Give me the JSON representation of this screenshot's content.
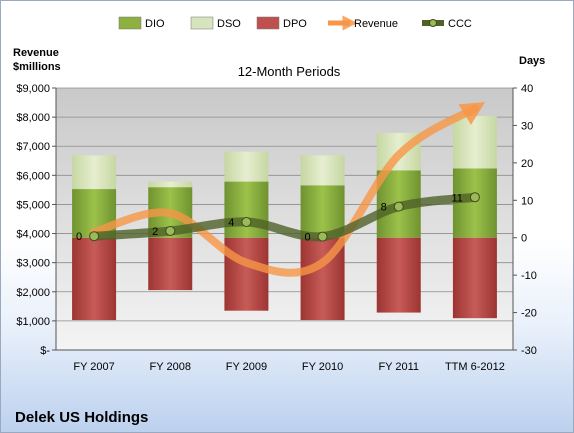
{
  "chart_data": {
    "type": "bar",
    "subtitle": "12-Month Periods",
    "company": "Delek US Holdings",
    "y_left_title": [
      "Revenue",
      "$millions"
    ],
    "y_right_title": "Days",
    "categories": [
      "FY 2007",
      "FY 2008",
      "FY 2009",
      "FY 2010",
      "FY 2011",
      "TTM 6-2012"
    ],
    "left_ticks": [
      "$-",
      "$1,000",
      "$2,000",
      "$3,000",
      "$4,000",
      "$5,000",
      "$6,000",
      "$7,000",
      "$8,000",
      "$9,000"
    ],
    "left_axis": {
      "min": 0,
      "max": 9000
    },
    "right_ticks": [
      "-30",
      "-20",
      "-10",
      "0",
      "10",
      "20",
      "30",
      "40"
    ],
    "right_axis": {
      "min": -30,
      "max": 40
    },
    "legend": [
      {
        "key": "dio",
        "label": "DIO"
      },
      {
        "key": "dso",
        "label": "DSO"
      },
      {
        "key": "dpo",
        "label": "DPO"
      },
      {
        "key": "revenue",
        "label": "Revenue"
      },
      {
        "key": "ccc",
        "label": "CCC"
      }
    ],
    "stacks": {
      "dpo_bottom": [
        -22,
        -14,
        -19.5,
        -22,
        -20,
        -21.5
      ],
      "dso_bottom": [
        13,
        13.5,
        15,
        14,
        18,
        18.5
      ],
      "top": [
        22,
        15,
        23,
        22,
        28,
        32.5
      ]
    },
    "revenue": [
      4050,
      4700,
      3000,
      3000,
      6700,
      8300
    ],
    "ccc": [
      0.4,
      1.8,
      4.2,
      0.3,
      8.3,
      10.8
    ],
    "ccc_labels": [
      "0",
      "2",
      "4",
      "0",
      "8",
      "11"
    ],
    "colors": {
      "dio": "#8db03f",
      "dso": "#d7e4bd",
      "dpo": "#c0504d",
      "revenue": "#f79646",
      "ccc": "#4f6228",
      "ccc_marker": "#9bbb59"
    }
  }
}
